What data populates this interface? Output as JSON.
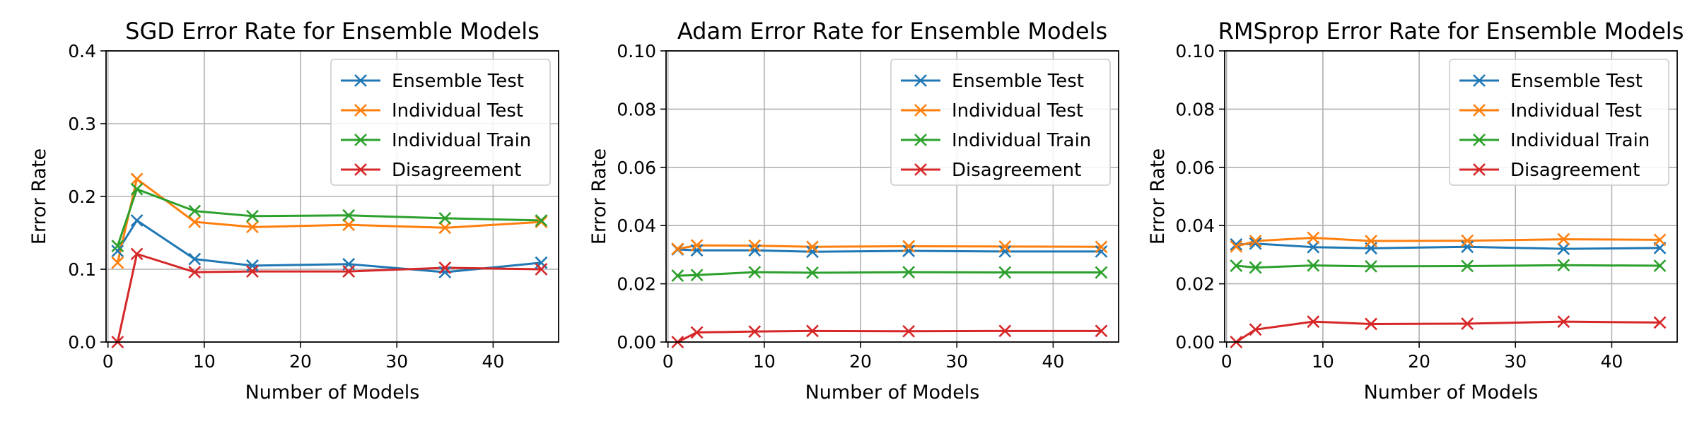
{
  "chart_data": [
    {
      "type": "line",
      "title": "SGD Error Rate for Ensemble Models",
      "xlabel": "Number of Models",
      "ylabel": "Error Rate",
      "xlim": [
        -0.2,
        46.8
      ],
      "ylim": [
        0,
        0.4
      ],
      "xticks": [
        "0",
        "10",
        "20",
        "30",
        "40"
      ],
      "yticks": [
        "0.0",
        "0.1",
        "0.2",
        "0.3",
        "0.4"
      ],
      "grid": true,
      "legend": "top-right",
      "x": [
        1,
        3,
        9,
        15,
        25,
        35,
        45
      ],
      "series": [
        {
          "name": "Ensemble Test",
          "color": "#1f77b4",
          "values": [
            0.125,
            0.167,
            0.114,
            0.105,
            0.107,
            0.096,
            0.109
          ]
        },
        {
          "name": "Individual Test",
          "color": "#ff7f0e",
          "values": [
            0.109,
            0.224,
            0.165,
            0.158,
            0.161,
            0.157,
            0.165
          ]
        },
        {
          "name": "Individual Train",
          "color": "#2ca02c",
          "values": [
            0.132,
            0.21,
            0.18,
            0.173,
            0.174,
            0.17,
            0.167
          ]
        },
        {
          "name": "Disagreement",
          "color": "#d62728",
          "values": [
            0.0,
            0.121,
            0.096,
            0.097,
            0.097,
            0.102,
            0.1
          ]
        }
      ]
    },
    {
      "type": "line",
      "title": "Adam Error Rate for Ensemble Models",
      "xlabel": "Number of Models",
      "ylabel": "Error Rate",
      "xlim": [
        -0.2,
        46.8
      ],
      "ylim": [
        0,
        0.1
      ],
      "xticks": [
        "0",
        "10",
        "20",
        "30",
        "40"
      ],
      "yticks": [
        "0.00",
        "0.02",
        "0.04",
        "0.06",
        "0.08",
        "0.10"
      ],
      "grid": true,
      "legend": "top-right",
      "x": [
        1,
        3,
        9,
        15,
        25,
        35,
        45
      ],
      "series": [
        {
          "name": "Ensemble Test",
          "color": "#1f77b4",
          "values": [
            0.0318,
            0.0315,
            0.0315,
            0.031,
            0.0313,
            0.0311,
            0.0311
          ]
        },
        {
          "name": "Individual Test",
          "color": "#ff7f0e",
          "values": [
            0.032,
            0.0332,
            0.0331,
            0.0327,
            0.0329,
            0.0328,
            0.0327
          ]
        },
        {
          "name": "Individual Train",
          "color": "#2ca02c",
          "values": [
            0.0228,
            0.023,
            0.024,
            0.0238,
            0.024,
            0.0239,
            0.0239
          ]
        },
        {
          "name": "Disagreement",
          "color": "#d62728",
          "values": [
            0.0,
            0.0033,
            0.0036,
            0.0038,
            0.0037,
            0.0038,
            0.0038
          ]
        }
      ]
    },
    {
      "type": "line",
      "title": "RMSprop Error Rate for Ensemble Models",
      "xlabel": "Number of Models",
      "ylabel": "Error Rate",
      "xlim": [
        -0.2,
        46.8
      ],
      "ylim": [
        0,
        0.1
      ],
      "xticks": [
        "0",
        "10",
        "20",
        "30",
        "40"
      ],
      "yticks": [
        "0.00",
        "0.02",
        "0.04",
        "0.06",
        "0.08",
        "0.10"
      ],
      "grid": true,
      "legend": "top-right",
      "x": [
        1,
        3,
        9,
        15,
        25,
        35,
        45
      ],
      "series": [
        {
          "name": "Ensemble Test",
          "color": "#1f77b4",
          "values": [
            0.0335,
            0.0338,
            0.0326,
            0.0322,
            0.0327,
            0.032,
            0.0323
          ]
        },
        {
          "name": "Individual Test",
          "color": "#ff7f0e",
          "values": [
            0.0328,
            0.0347,
            0.0358,
            0.0347,
            0.0348,
            0.0353,
            0.0351
          ]
        },
        {
          "name": "Individual Train",
          "color": "#2ca02c",
          "values": [
            0.0262,
            0.0256,
            0.0263,
            0.026,
            0.0261,
            0.0264,
            0.0262
          ]
        },
        {
          "name": "Disagreement",
          "color": "#d62728",
          "values": [
            0.0,
            0.0043,
            0.007,
            0.0062,
            0.0063,
            0.007,
            0.0067
          ]
        }
      ]
    }
  ]
}
